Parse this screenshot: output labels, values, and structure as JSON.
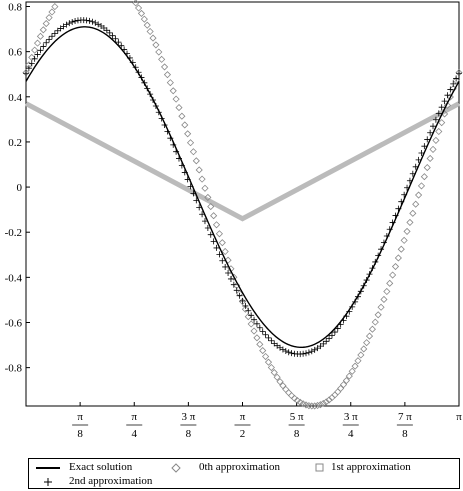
{
  "chart_data": {
    "type": "line",
    "title": "",
    "xlabel": "",
    "ylabel": "",
    "xlim": [
      0,
      3.14159
    ],
    "ylim": [
      -0.97,
      0.82
    ],
    "grid": false,
    "legend_position": "bottom",
    "x_ticks": [
      {
        "value": 0.3927,
        "num": "π",
        "den": "8"
      },
      {
        "value": 0.7854,
        "num": "π",
        "den": "4"
      },
      {
        "value": 1.1781,
        "num": "3 π",
        "den": "8"
      },
      {
        "value": 1.5708,
        "num": "π",
        "den": "2"
      },
      {
        "value": 1.9635,
        "num": "5 π",
        "den": "8"
      },
      {
        "value": 2.3562,
        "num": "3 π",
        "den": "4"
      },
      {
        "value": 2.7489,
        "num": "7 π",
        "den": "8"
      },
      {
        "value": 3.14159,
        "num": "π",
        "den": ""
      }
    ],
    "y_ticks": [
      "0.8",
      "0.6",
      "0.4",
      "0.2",
      "0",
      "-0.2",
      "-0.4",
      "-0.6",
      "-0.8"
    ],
    "y_tick_values": [
      0.8,
      0.6,
      0.4,
      0.2,
      0,
      -0.2,
      -0.4,
      -0.6,
      -0.8
    ],
    "series": [
      {
        "name": "Exact solution",
        "color": "#000000",
        "marker": "line",
        "amplitude": 0.71,
        "phase": 0.72
      },
      {
        "name": "0th approximation",
        "color": "#888888",
        "marker": "diamond",
        "amplitude": 0.97,
        "phase": 0.55
      },
      {
        "name": "1st approximation",
        "color": "#bbbbbb",
        "marker": "v-line",
        "points": [
          [
            0,
            0.37
          ],
          [
            1.5708,
            -0.14
          ],
          [
            3.14159,
            0.37
          ]
        ]
      },
      {
        "name": "2nd approximation",
        "color": "#000000",
        "marker": "plus",
        "amplitude": 0.74,
        "phase": 0.75
      }
    ]
  },
  "legend": {
    "exact": "Exact solution",
    "zeroth": "0th approximation",
    "first": "1st approximation",
    "second": "2nd approximation"
  }
}
